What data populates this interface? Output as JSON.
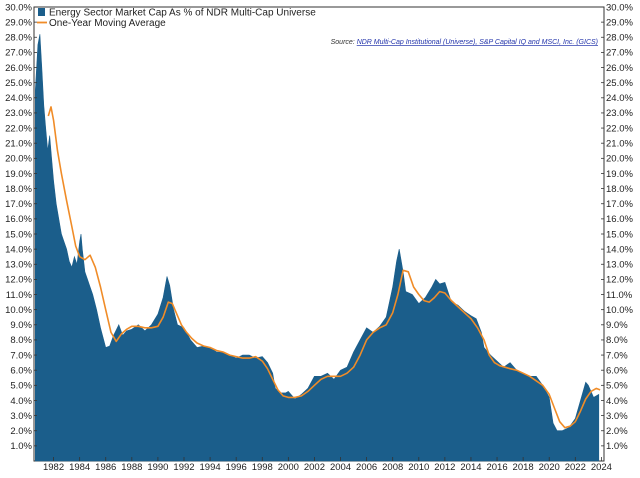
{
  "chart_data": {
    "type": "area",
    "title": "",
    "xlabel": "",
    "ylabel": "",
    "ylim": [
      0.0,
      30.0
    ],
    "xlim": [
      1980.5,
      2024.2
    ],
    "y_ticks": [
      "1.0%",
      "2.0%",
      "3.0%",
      "4.0%",
      "5.0%",
      "6.0%",
      "7.0%",
      "8.0%",
      "9.0%",
      "10.0%",
      "11.0%",
      "12.0%",
      "13.0%",
      "14.0%",
      "15.0%",
      "16.0%",
      "17.0%",
      "18.0%",
      "19.0%",
      "20.0%",
      "21.0%",
      "22.0%",
      "23.0%",
      "24.0%",
      "25.0%",
      "26.0%",
      "27.0%",
      "28.0%",
      "29.0%",
      "30.0%"
    ],
    "x_ticks": [
      "1982",
      "1984",
      "1986",
      "1988",
      "1990",
      "1992",
      "1994",
      "1996",
      "1998",
      "2000",
      "2002",
      "2004",
      "2006",
      "2008",
      "2010",
      "2012",
      "2014",
      "2016",
      "2018",
      "2020",
      "2022",
      "2024"
    ],
    "grid": false,
    "legend_position": "top-left",
    "series": [
      {
        "name": "Energy Sector Market Cap As % of NDR Multi-Cap Universe",
        "style": "area",
        "color": "#1b5e8b",
        "x": [
          1980.6,
          1980.8,
          1980.95,
          1981.1,
          1981.25,
          1981.4,
          1981.55,
          1981.7,
          1981.85,
          1982.0,
          1982.2,
          1982.4,
          1982.6,
          1982.8,
          1983.0,
          1983.2,
          1983.4,
          1983.6,
          1983.8,
          1984.0,
          1984.1,
          1984.2,
          1984.4,
          1984.6,
          1984.8,
          1985.0,
          1985.3,
          1985.6,
          1986.0,
          1986.3,
          1986.6,
          1987.0,
          1987.3,
          1987.6,
          1988.0,
          1988.5,
          1989.0,
          1989.5,
          1990.0,
          1990.4,
          1990.7,
          1990.9,
          1991.2,
          1991.5,
          1992.0,
          1992.5,
          1993.0,
          1993.5,
          1994.0,
          1994.5,
          1995.0,
          1995.5,
          1996.0,
          1996.5,
          1997.0,
          1997.5,
          1998.0,
          1998.4,
          1998.8,
          1999.0,
          1999.4,
          1999.8,
          2000.0,
          2000.5,
          2001.0,
          2001.5,
          2002.0,
          2002.5,
          2003.0,
          2003.5,
          2004.0,
          2004.5,
          2005.0,
          2005.5,
          2006.0,
          2006.5,
          2007.0,
          2007.5,
          2008.0,
          2008.3,
          2008.5,
          2008.8,
          2009.0,
          2009.5,
          2010.0,
          2010.5,
          2011.0,
          2011.3,
          2011.6,
          2012.0,
          2012.5,
          2013.0,
          2013.5,
          2014.0,
          2014.4,
          2014.8,
          2015.0,
          2015.5,
          2016.0,
          2016.5,
          2017.0,
          2017.5,
          2018.0,
          2018.5,
          2019.0,
          2019.5,
          2020.0,
          2020.3,
          2020.6,
          2021.0,
          2021.5,
          2022.0,
          2022.4,
          2022.8,
          2023.0,
          2023.4,
          2023.8
        ],
        "values": [
          24.5,
          27.5,
          28.2,
          26.0,
          23.5,
          22.0,
          20.5,
          21.5,
          20.0,
          18.5,
          17.0,
          16.0,
          15.0,
          14.5,
          14.0,
          13.2,
          12.8,
          13.5,
          13.0,
          14.5,
          15.0,
          14.0,
          12.5,
          12.0,
          11.5,
          11.0,
          10.0,
          8.8,
          7.5,
          7.6,
          8.3,
          9.0,
          8.3,
          8.6,
          8.7,
          9.0,
          8.6,
          9.0,
          9.7,
          10.8,
          12.2,
          11.6,
          10.0,
          9.0,
          8.8,
          8.0,
          7.5,
          7.6,
          7.5,
          7.2,
          7.2,
          7.0,
          6.8,
          7.0,
          7.0,
          6.8,
          6.9,
          6.5,
          5.8,
          4.8,
          4.5,
          4.5,
          4.6,
          4.1,
          4.4,
          4.8,
          5.6,
          5.6,
          5.8,
          5.4,
          6.0,
          6.2,
          7.2,
          8.0,
          8.8,
          8.5,
          8.9,
          9.5,
          11.5,
          13.2,
          14.0,
          12.5,
          11.2,
          11.0,
          10.4,
          10.8,
          11.5,
          12.0,
          11.7,
          11.8,
          10.5,
          10.3,
          9.9,
          9.6,
          9.4,
          8.5,
          7.5,
          7.0,
          6.6,
          6.2,
          6.5,
          6.0,
          5.8,
          5.6,
          5.6,
          5.0,
          4.2,
          2.5,
          2.0,
          2.0,
          2.2,
          2.8,
          4.0,
          5.2,
          5.0,
          4.2,
          4.4
        ]
      },
      {
        "name": "One-Year Moving Average",
        "style": "line",
        "color": "#f08c28",
        "x": [
          1981.6,
          1981.8,
          1982.0,
          1982.3,
          1982.6,
          1983.0,
          1983.4,
          1983.7,
          1984.0,
          1984.4,
          1984.8,
          1985.2,
          1985.6,
          1986.0,
          1986.4,
          1986.8,
          1987.2,
          1987.6,
          1988.0,
          1988.5,
          1989.0,
          1989.5,
          1990.0,
          1990.4,
          1990.8,
          1991.1,
          1991.4,
          1991.8,
          1992.2,
          1992.6,
          1993.0,
          1993.5,
          1994.0,
          1994.5,
          1995.0,
          1995.5,
          1996.0,
          1996.5,
          1997.0,
          1997.5,
          1998.0,
          1998.4,
          1998.8,
          1999.2,
          1999.6,
          2000.0,
          2000.5,
          2001.0,
          2001.5,
          2002.0,
          2002.5,
          2003.0,
          2003.5,
          2004.0,
          2004.5,
          2005.0,
          2005.5,
          2006.0,
          2006.5,
          2007.0,
          2007.5,
          2008.0,
          2008.4,
          2008.8,
          2009.2,
          2009.6,
          2010.0,
          2010.4,
          2010.8,
          2011.2,
          2011.6,
          2012.0,
          2012.5,
          2013.0,
          2013.5,
          2014.0,
          2014.5,
          2015.0,
          2015.4,
          2015.8,
          2016.2,
          2016.6,
          2017.0,
          2017.5,
          2018.0,
          2018.5,
          2019.0,
          2019.5,
          2020.0,
          2020.4,
          2020.8,
          2021.2,
          2021.6,
          2022.0,
          2022.4,
          2022.8,
          2023.2,
          2023.6,
          2023.9
        ],
        "values": [
          22.8,
          23.4,
          22.5,
          20.5,
          19.0,
          17.2,
          15.5,
          14.2,
          13.5,
          13.3,
          13.6,
          12.8,
          11.5,
          10.0,
          8.5,
          7.9,
          8.4,
          8.7,
          8.9,
          8.9,
          8.8,
          8.8,
          8.9,
          9.5,
          10.5,
          10.4,
          9.8,
          9.0,
          8.5,
          8.1,
          7.8,
          7.6,
          7.5,
          7.3,
          7.2,
          7.0,
          6.9,
          6.8,
          6.8,
          6.9,
          6.6,
          6.1,
          5.4,
          4.7,
          4.3,
          4.2,
          4.2,
          4.3,
          4.6,
          5.0,
          5.4,
          5.6,
          5.6,
          5.6,
          5.8,
          6.2,
          7.0,
          8.0,
          8.5,
          8.8,
          9.0,
          9.8,
          11.0,
          12.6,
          12.5,
          11.5,
          11.0,
          10.6,
          10.5,
          10.8,
          11.2,
          11.1,
          10.6,
          10.2,
          9.8,
          9.4,
          8.8,
          8.0,
          7.0,
          6.5,
          6.3,
          6.2,
          6.1,
          6.0,
          5.8,
          5.6,
          5.3,
          5.0,
          4.4,
          3.5,
          2.6,
          2.2,
          2.3,
          2.6,
          3.3,
          4.1,
          4.6,
          4.8,
          4.7
        ]
      }
    ]
  },
  "source": {
    "label": "Source: ",
    "text": "NDR Multi-Cap Institutional (Universe), S&P Capital IQ and MSCI, Inc. (GICS)"
  },
  "colors": {
    "area": "#1b5e8b",
    "moving_average": "#f08c28",
    "axis": "#333333"
  }
}
